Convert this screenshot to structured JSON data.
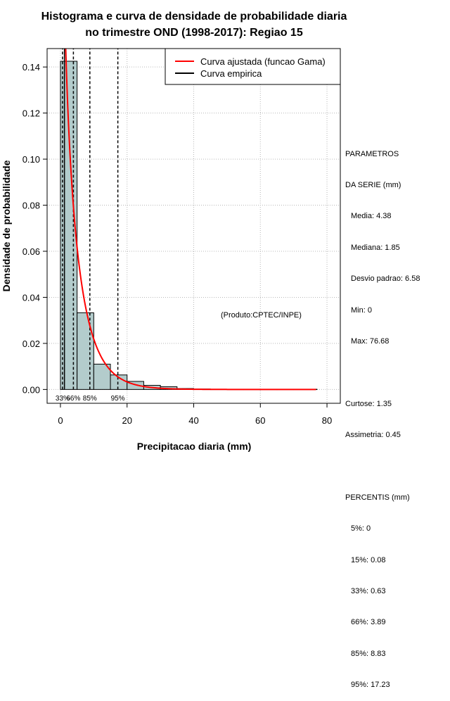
{
  "chart_data": {
    "type": "bar",
    "title": [
      "Histograma e curva de densidade de probabilidade diaria",
      "no trimestre OND (1998-2017): Regiao 15"
    ],
    "xlabel": "Precipitacao diaria (mm)",
    "ylabel": "Densidade de probabilidade",
    "xlim": [
      -4,
      84
    ],
    "ylim": [
      -0.006,
      0.148
    ],
    "xticks": [
      0,
      20,
      40,
      60,
      80
    ],
    "yticks": [
      0.0,
      0.02,
      0.04,
      0.06,
      0.08,
      0.1,
      0.12,
      0.14
    ],
    "xtick_labels": [
      "0",
      "20",
      "40",
      "60",
      "80"
    ],
    "ytick_labels": [
      "0.00",
      "0.02",
      "0.04",
      "0.06",
      "0.08",
      "0.10",
      "0.12",
      "0.14"
    ],
    "grid": true,
    "bins": [
      {
        "x0": 0,
        "x1": 5,
        "density": 0.1425
      },
      {
        "x0": 5,
        "x1": 10,
        "density": 0.0333
      },
      {
        "x0": 10,
        "x1": 15,
        "density": 0.011
      },
      {
        "x0": 15,
        "x1": 20,
        "density": 0.0063
      },
      {
        "x0": 20,
        "x1": 25,
        "density": 0.0035
      },
      {
        "x0": 25,
        "x1": 30,
        "density": 0.0018
      },
      {
        "x0": 30,
        "x1": 35,
        "density": 0.0012
      },
      {
        "x0": 35,
        "x1": 40,
        "density": 0.0004
      },
      {
        "x0": 40,
        "x1": 45,
        "density": 0.0002
      },
      {
        "x0": 45,
        "x1": 50,
        "density": 0.0001
      },
      {
        "x0": 50,
        "x1": 55,
        "density": 0.0001
      },
      {
        "x0": 55,
        "x1": 60,
        "density": 0.0001
      },
      {
        "x0": 60,
        "x1": 65,
        "density": 0.0001
      },
      {
        "x0": 65,
        "x1": 70,
        "density": 0.0001
      },
      {
        "x0": 70,
        "x1": 75,
        "density": 0.0001
      },
      {
        "x0": 75,
        "x1": 77,
        "density": 0.0001
      }
    ],
    "gamma_fit": {
      "shape": 0.75,
      "scale": 5.8,
      "x_max": 76.68
    },
    "percentile_lines": [
      {
        "label": "33%",
        "value": 0.63
      },
      {
        "label": "66%",
        "value": 3.89
      },
      {
        "label": "85%",
        "value": 8.83
      },
      {
        "label": "95%",
        "value": 17.23
      }
    ],
    "legend": {
      "position": "top-right",
      "entries": [
        {
          "label": "Curva ajustada (funcao Gama)",
          "color": "#ff0000"
        },
        {
          "label": "Curva empirica",
          "color": "#000000"
        }
      ]
    },
    "annotation": "(Produto:CPTEC/INPE)",
    "colors": {
      "bar_fill": "#b3cccc",
      "bar_stroke": "#000000",
      "curve": "#ff0000",
      "empirical": "#000000",
      "grid": "#b8b8b8"
    }
  },
  "stats": {
    "header": [
      "PARAMETROS",
      "DA SERIE (mm)"
    ],
    "series": [
      "Media: 4.38",
      "Mediana: 1.85",
      "Desvio padrao: 6.58",
      "Min: 0",
      "Max: 76.68"
    ],
    "shape": [
      "Curtose: 1.35",
      "Assimetria: 0.45"
    ],
    "percentis_header": "PERCENTIS (mm)",
    "percentis": [
      "5%: 0",
      "15%: 0.08",
      "33%: 0.63",
      "66%: 3.89",
      "85%: 8.83",
      "95%: 17.23"
    ]
  }
}
